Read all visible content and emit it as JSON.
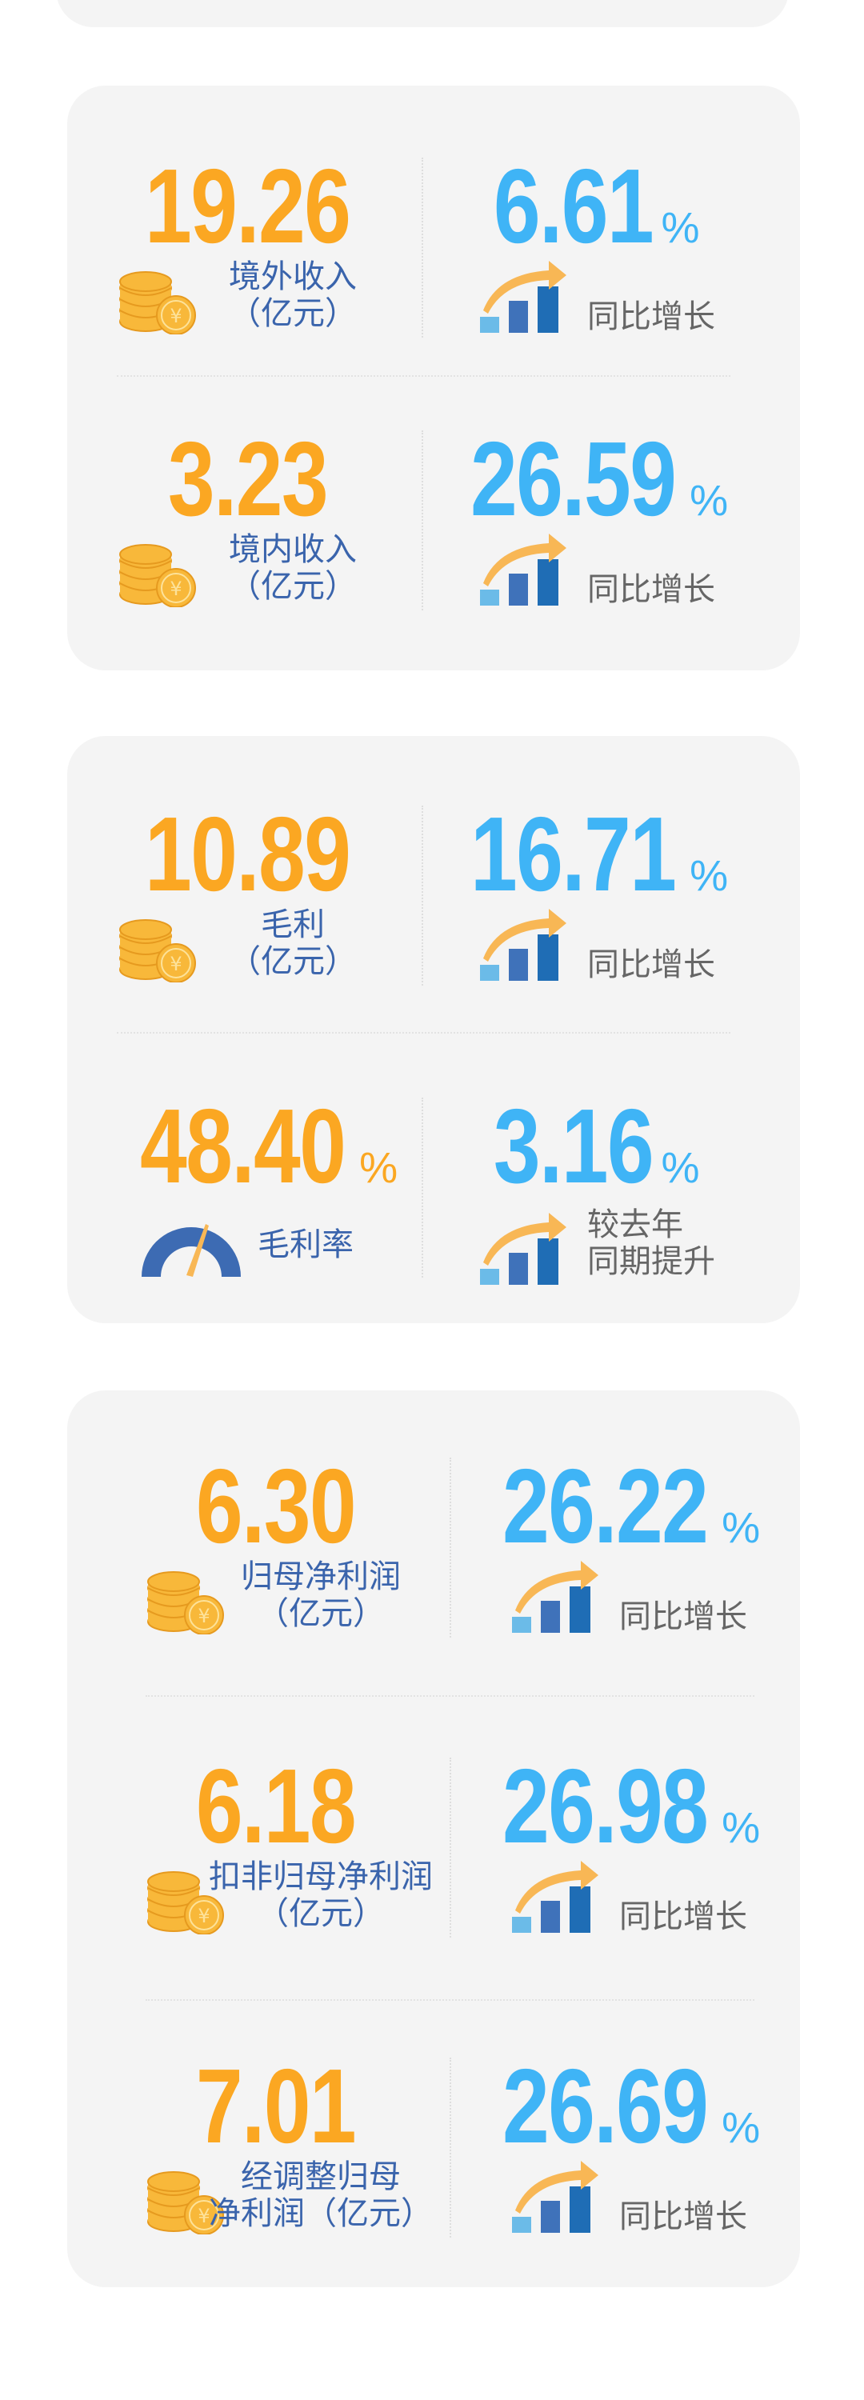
{
  "colors": {
    "orange": "#fba722",
    "blue_pct": "#3fb4f6",
    "label_blue": "#3a64ac",
    "label_gray": "#666666",
    "card_bg": "#f4f4f4"
  },
  "cards": [
    {
      "rows": [
        {
          "icon": "coins-icon",
          "value": "19.26",
          "value_unit": "",
          "label": [
            "境外收入",
            "（亿元）"
          ],
          "pct": "6.61",
          "pct_unit": "%",
          "pct_icon": "growth-chart-icon",
          "pct_label": [
            "同比增长"
          ]
        },
        {
          "icon": "coins-icon",
          "value": "3.23",
          "value_unit": "",
          "label": [
            "境内收入",
            "（亿元）"
          ],
          "pct": "26.59",
          "pct_unit": "%",
          "pct_icon": "growth-chart-icon",
          "pct_label": [
            "同比增长"
          ]
        }
      ]
    },
    {
      "rows": [
        {
          "icon": "coins-icon",
          "value": "10.89",
          "value_unit": "",
          "label": [
            "毛利",
            "（亿元）"
          ],
          "pct": "16.71",
          "pct_unit": "%",
          "pct_icon": "growth-chart-icon",
          "pct_label": [
            "同比增长"
          ]
        },
        {
          "icon": "gauge-icon",
          "value": "48.40",
          "value_unit": "%",
          "label": [
            "毛利率"
          ],
          "pct": "3.16",
          "pct_unit": "%",
          "pct_icon": "growth-chart-icon",
          "pct_label": [
            "较去年",
            "同期提升"
          ]
        }
      ]
    },
    {
      "rows": [
        {
          "icon": "coins-icon",
          "value": "6.30",
          "value_unit": "",
          "label": [
            "归母净利润",
            "（亿元）"
          ],
          "pct": "26.22",
          "pct_unit": "%",
          "pct_icon": "growth-chart-icon",
          "pct_label": [
            "同比增长"
          ]
        },
        {
          "icon": "coins-icon",
          "value": "6.18",
          "value_unit": "",
          "label": [
            "扣非归母净利润",
            "（亿元）"
          ],
          "pct": "26.98",
          "pct_unit": "%",
          "pct_icon": "growth-chart-icon",
          "pct_label": [
            "同比增长"
          ]
        },
        {
          "icon": "coins-icon",
          "value": "7.01",
          "value_unit": "",
          "label": [
            "经调整归母",
            "净利润（亿元）"
          ],
          "pct": "26.69",
          "pct_unit": "%",
          "pct_icon": "growth-chart-icon",
          "pct_label": [
            "同比增长"
          ]
        }
      ]
    }
  ]
}
